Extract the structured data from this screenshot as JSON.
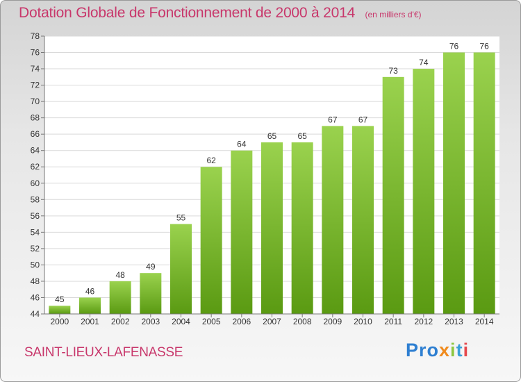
{
  "header": {
    "title": "Dotation Globale de Fonctionnement de 2000 à 2014",
    "unit": "(en milliers d'€)"
  },
  "footer": {
    "commune": "SAINT-LIEUX-LAFENASSE",
    "logo": [
      "Pro",
      "x",
      "i",
      "t",
      "i"
    ]
  },
  "colors": {
    "title": "#c8376b",
    "bar_top": "#9ad24e",
    "bar_bottom": "#5a9a12"
  },
  "chart_data": {
    "type": "bar",
    "title": "Dotation Globale de Fonctionnement de 2000 à 2014",
    "subtitle": "(en milliers d'€)",
    "xlabel": "",
    "ylabel": "",
    "categories": [
      "2000",
      "2001",
      "2002",
      "2003",
      "2004",
      "2005",
      "2006",
      "2007",
      "2008",
      "2009",
      "2010",
      "2011",
      "2012",
      "2013",
      "2014"
    ],
    "values": [
      45,
      46,
      48,
      49,
      55,
      62,
      64,
      65,
      65,
      67,
      67,
      73,
      74,
      76,
      76
    ],
    "ylim": [
      44,
      78
    ],
    "yticks": [
      44,
      46,
      48,
      50,
      52,
      54,
      56,
      58,
      60,
      62,
      64,
      66,
      68,
      70,
      72,
      74,
      76,
      78
    ],
    "grid": true,
    "legend": "none"
  }
}
